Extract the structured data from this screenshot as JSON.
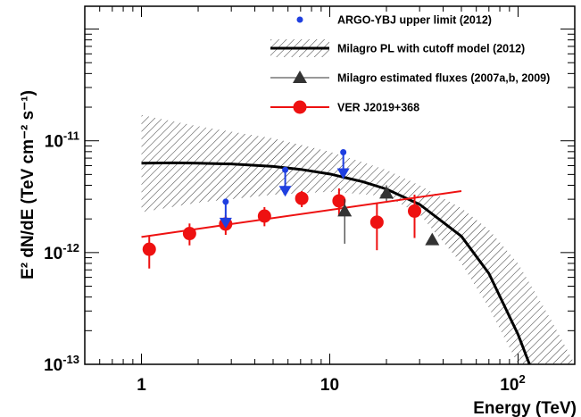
{
  "chart_data": {
    "type": "scatter",
    "xlabel": "Energy (TeV)",
    "ylabel": "E² dN/dE (TeV cm⁻² s⁻¹)",
    "xscale": "log",
    "yscale": "log",
    "xlim": [
      0.5,
      200
    ],
    "ylim": [
      1e-13,
      1.6e-10
    ],
    "x_tick_labels": [
      "1",
      "10",
      "10²"
    ],
    "y_tick_labels": [
      "10⁻¹³",
      "10⁻¹²",
      "10⁻¹¹"
    ],
    "legend_position": "top-right",
    "legend": [
      {
        "label": "ARGO-YBJ upper limit (2012)",
        "color": "#1f3fe0",
        "marker": "small-circle"
      },
      {
        "label": "Milagro PL with cutoff model (2012)",
        "color": "#000000",
        "marker": "line-with-hatched-band"
      },
      {
        "label": "Milagro estimated fluxes (2007a,b, 2009)",
        "color": "#333333",
        "marker": "triangle"
      },
      {
        "label": "VER J2019+368",
        "color": "#ee1111",
        "marker": "circle"
      }
    ],
    "series": [
      {
        "name": "VER J2019+368",
        "color": "#ee1111",
        "points": [
          {
            "x": 1.1,
            "y": 1.07e-12,
            "ylo": 7.2e-13,
            "yhi": 1.42e-12
          },
          {
            "x": 1.8,
            "y": 1.48e-12,
            "ylo": 1.16e-12,
            "yhi": 1.82e-12
          },
          {
            "x": 2.8,
            "y": 1.8e-12,
            "ylo": 1.44e-12,
            "yhi": 2.15e-12
          },
          {
            "x": 4.5,
            "y": 2.12e-12,
            "ylo": 1.72e-12,
            "yhi": 2.55e-12
          },
          {
            "x": 7.1,
            "y": 3.05e-12,
            "ylo": 2.55e-12,
            "yhi": 3.55e-12
          },
          {
            "x": 11.2,
            "y": 2.9e-12,
            "ylo": 2.15e-12,
            "yhi": 3.75e-12
          },
          {
            "x": 17.8,
            "y": 1.87e-12,
            "ylo": 1.05e-12,
            "yhi": 2.75e-12
          },
          {
            "x": 28.2,
            "y": 2.35e-12,
            "ylo": 1.35e-12,
            "yhi": 3.3e-12
          }
        ],
        "fit_line": {
          "x": [
            1.0,
            50.0
          ],
          "y": [
            1.38e-12,
            3.55e-12
          ]
        }
      },
      {
        "name": "ARGO-YBJ upper limit (2012)",
        "color": "#1f3fe0",
        "points": [
          {
            "x": 2.8,
            "y": 2.85e-12
          },
          {
            "x": 5.8,
            "y": 5.5e-12
          },
          {
            "x": 11.8,
            "y": 7.9e-12
          }
        ]
      },
      {
        "name": "Milagro estimated fluxes (2007a,b, 2009)",
        "color": "#333333",
        "points": [
          {
            "x": 12.0,
            "y": 2.35e-12,
            "ylo": 1.2e-12,
            "yhi": 3e-12
          },
          {
            "x": 20.0,
            "y": 3.4e-12,
            "ylo": 2.9e-12,
            "yhi": 4e-12
          },
          {
            "x": 35.0,
            "y": 1.3e-12
          }
        ]
      },
      {
        "name": "Milagro PL with cutoff model (2012)",
        "color": "#000000",
        "model": {
          "x": [
            1.0,
            1.5,
            2,
            3,
            5,
            7,
            10,
            15,
            20,
            30,
            50,
            70,
            100,
            115
          ],
          "y": [
            6.3e-12,
            6.35e-12,
            6.3e-12,
            6.2e-12,
            5.9e-12,
            5.55e-12,
            5.05e-12,
            4.3e-12,
            3.7e-12,
            2.7e-12,
            1.4e-12,
            6.5e-13,
            1.85e-13,
            1e-13
          ]
        },
        "band": {
          "x": [
            1.0,
            2,
            5,
            10,
            20,
            30,
            50,
            70,
            100,
            150,
            200
          ],
          "upper": [
            1.7e-11,
            1.35e-11,
            1.05e-11,
            8e-12,
            5.5e-12,
            4e-12,
            2.5e-12,
            1.6e-12,
            8e-13,
            2.5e-13,
            1e-13
          ],
          "lower": [
            2.3e-12,
            2.8e-12,
            3.3e-12,
            3.5e-12,
            3.2e-12,
            2.2e-12,
            8e-13,
            3.2e-13,
            1e-13,
            1e-13,
            1e-13
          ]
        }
      }
    ]
  }
}
